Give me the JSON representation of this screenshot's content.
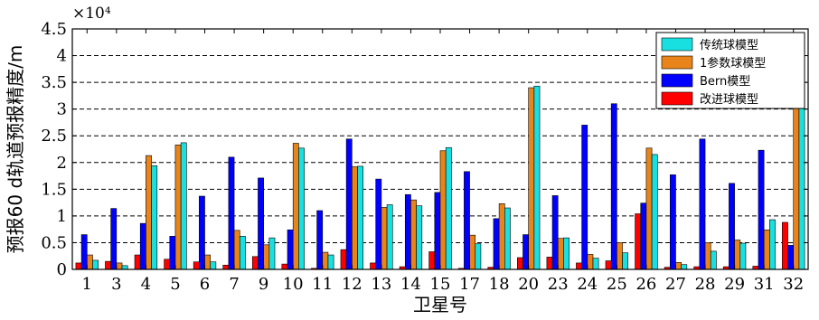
{
  "chart_data": {
    "type": "bar",
    "title": "",
    "xlabel": "卫星号",
    "ylabel": "预报60 d轨道预报精度/m",
    "y_multiplier_label": "×10⁴",
    "ylim": [
      0,
      4.5
    ],
    "yticks": [
      0,
      0.5,
      1,
      1.5,
      2,
      2.5,
      3,
      3.5,
      4,
      4.5
    ],
    "grid": "horizontal-dashed",
    "legend_position": "top-right",
    "categories": [
      "1",
      "3",
      "4",
      "5",
      "6",
      "7",
      "9",
      "10",
      "11",
      "12",
      "13",
      "14",
      "15",
      "17",
      "18",
      "20",
      "23",
      "24",
      "25",
      "26",
      "27",
      "28",
      "29",
      "31",
      "32"
    ],
    "series": [
      {
        "name": "改进球模型",
        "color": "#ff0000",
        "values": [
          0.12,
          0.15,
          0.27,
          0.19,
          0.14,
          0.08,
          0.24,
          0.1,
          0.02,
          0.37,
          0.12,
          0.05,
          0.33,
          0.02,
          0.04,
          0.22,
          0.23,
          0.12,
          0.16,
          1.04,
          0.04,
          0.05,
          0.05,
          0.06,
          0.88
        ]
      },
      {
        "name": "Bern模型",
        "color": "#0000ff",
        "values": [
          0.65,
          1.14,
          0.86,
          0.62,
          1.37,
          2.1,
          1.71,
          0.74,
          1.1,
          2.44,
          1.69,
          1.4,
          1.44,
          1.83,
          0.95,
          0.65,
          1.38,
          2.7,
          3.1,
          1.24,
          1.77,
          2.44,
          1.61,
          2.23,
          0.45
        ]
      },
      {
        "name": "1参数球模型",
        "color": "#e8841a",
        "values": [
          0.27,
          0.12,
          2.13,
          2.33,
          0.27,
          0.73,
          0.46,
          2.36,
          0.32,
          1.92,
          1.16,
          1.3,
          2.22,
          0.64,
          1.23,
          3.4,
          0.58,
          0.28,
          0.5,
          2.27,
          0.13,
          0.5,
          0.55,
          0.74,
          4.19
        ]
      },
      {
        "name": "传统球模型",
        "color": "#19e0e0",
        "values": [
          0.17,
          0.07,
          1.94,
          2.37,
          0.14,
          0.62,
          0.59,
          2.27,
          0.27,
          1.93,
          1.21,
          1.19,
          2.28,
          0.48,
          1.15,
          3.43,
          0.59,
          0.21,
          0.31,
          2.15,
          0.09,
          0.34,
          0.49,
          0.93,
          4.22
        ]
      }
    ],
    "legend_order": [
      "传统球模型",
      "1参数球模型",
      "Bern模型",
      "改进球模型"
    ]
  }
}
